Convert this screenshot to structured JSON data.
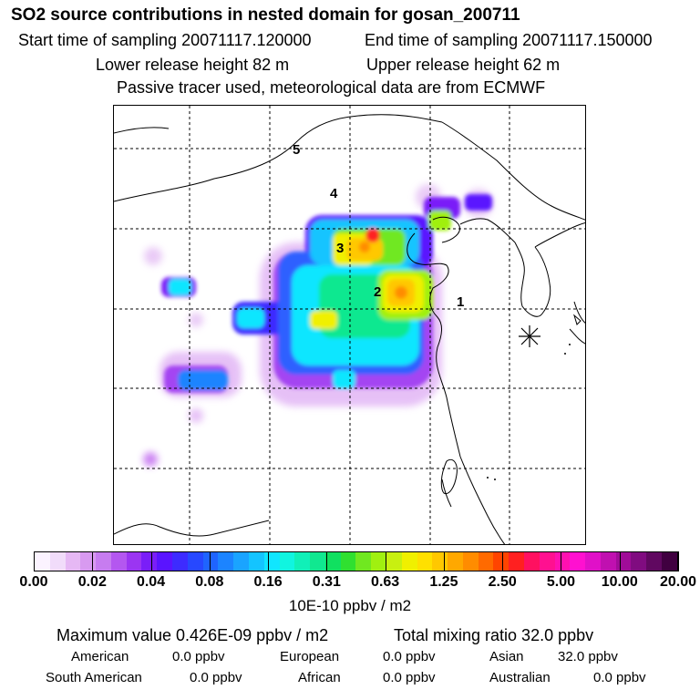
{
  "header": {
    "title": "SO2 source contributions in nested domain for gosan_200711",
    "start_time": "Start time of sampling 20071117.120000",
    "end_time": "End time of sampling 20071117.150000",
    "lower_release": "Lower release height   82 m",
    "upper_release": "Upper release height   62 m",
    "tracer_note": "Passive tracer used, meteorological data are from ECMWF"
  },
  "map": {
    "source_markers": [
      "1",
      "2",
      "3",
      "4",
      "5"
    ],
    "receptor_icon": "asterisk-icon"
  },
  "legend": {
    "tick_labels": [
      "0.00",
      "0.02",
      "0.04",
      "0.08",
      "0.16",
      "0.31",
      "0.63",
      "1.25",
      "2.50",
      "5.00",
      "10.00",
      "20.00"
    ],
    "unit": "10E-10 ppbv / m2",
    "colors": [
      "#fbf3ff",
      "#f1dcfa",
      "#e6b8f4",
      "#d89af0",
      "#c77cf0",
      "#b457f0",
      "#9b35f2",
      "#7a1ef8",
      "#5a14ff",
      "#3d2bff",
      "#2748ff",
      "#1f64ff",
      "#1c84ff",
      "#1aa4ff",
      "#14c4ff",
      "#10e6ff",
      "#10f5e0",
      "#10f0b8",
      "#10e890",
      "#10e060",
      "#30e030",
      "#70e820",
      "#a0f010",
      "#c8f010",
      "#f0f000",
      "#ffe000",
      "#ffc800",
      "#ffa800",
      "#ff8c00",
      "#ff6a00",
      "#ff4400",
      "#ff2020",
      "#ff1060",
      "#ff1090",
      "#ff10b0",
      "#ff10d0",
      "#e010c8",
      "#c010b0",
      "#a00c98",
      "#800c80",
      "#600860",
      "#400040"
    ]
  },
  "stats": {
    "max_value": "Maximum value  0.426E-09 ppbv / m2",
    "total_mixing": "Total mixing ratio       32.0 ppbv",
    "american": "American",
    "american_val": "0.0 ppbv",
    "european": "European",
    "european_val": "0.0 ppbv",
    "asian": "Asian",
    "asian_val": "32.0 ppbv",
    "south_american": "South American",
    "south_american_val": "0.0 ppbv",
    "african": "African",
    "african_val": "0.0 ppbv",
    "australian": "Australian",
    "australian_val": "0.0 ppbv"
  }
}
